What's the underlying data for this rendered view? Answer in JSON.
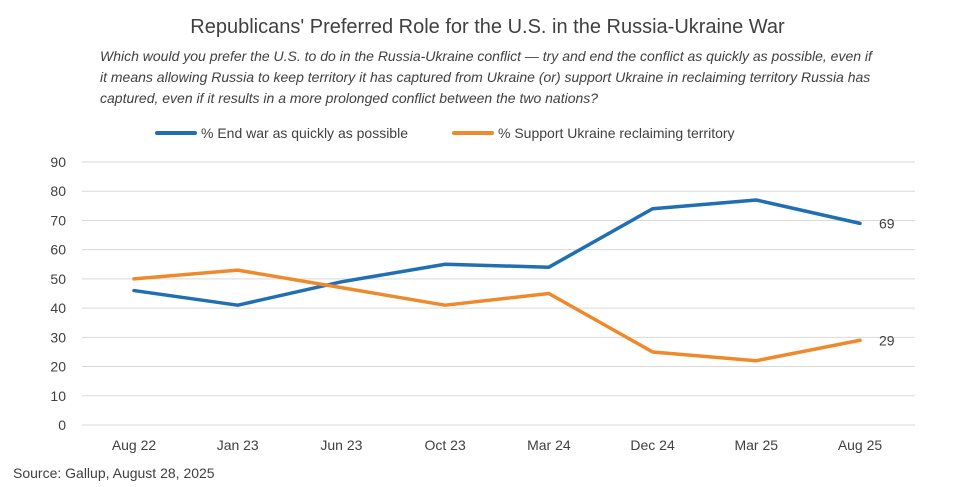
{
  "chart_data": {
    "type": "line",
    "title": "Republicans' Preferred Role for the U.S. in the Russia-Ukraine War",
    "subtitle": "Which would you prefer the U.S. to do in the Russia-Ukraine conflict — try and end the conflict as quickly as possible, even if it means allowing Russia to keep territory it has captured from Ukraine (or) support Ukraine in reclaiming territory Russia has captured, even if it results in a more prolonged conflict between the two nations?",
    "categories": [
      "Aug 22",
      "Jan 23",
      "Jun 23",
      "Oct 23",
      "Mar 24",
      "Dec 24",
      "Mar 25",
      "Aug 25"
    ],
    "series": [
      {
        "name": "% End war as quickly as possible",
        "color": "#1f6fb2",
        "values": [
          46,
          41,
          49,
          55,
          54,
          74,
          77,
          69
        ],
        "end_label": "69"
      },
      {
        "name": "% Support Ukraine reclaiming territory",
        "color": "#ee8a2c",
        "values": [
          50,
          53,
          47,
          41,
          45,
          25,
          22,
          29
        ],
        "end_label": "29"
      }
    ],
    "ylim": [
      0,
      90
    ],
    "yticks": [
      0,
      10,
      20,
      30,
      40,
      50,
      60,
      70,
      80,
      90
    ],
    "grid": true,
    "legend": "top",
    "xlabel": "",
    "ylabel": ""
  },
  "source": "Source: Gallup, August 28, 2025"
}
